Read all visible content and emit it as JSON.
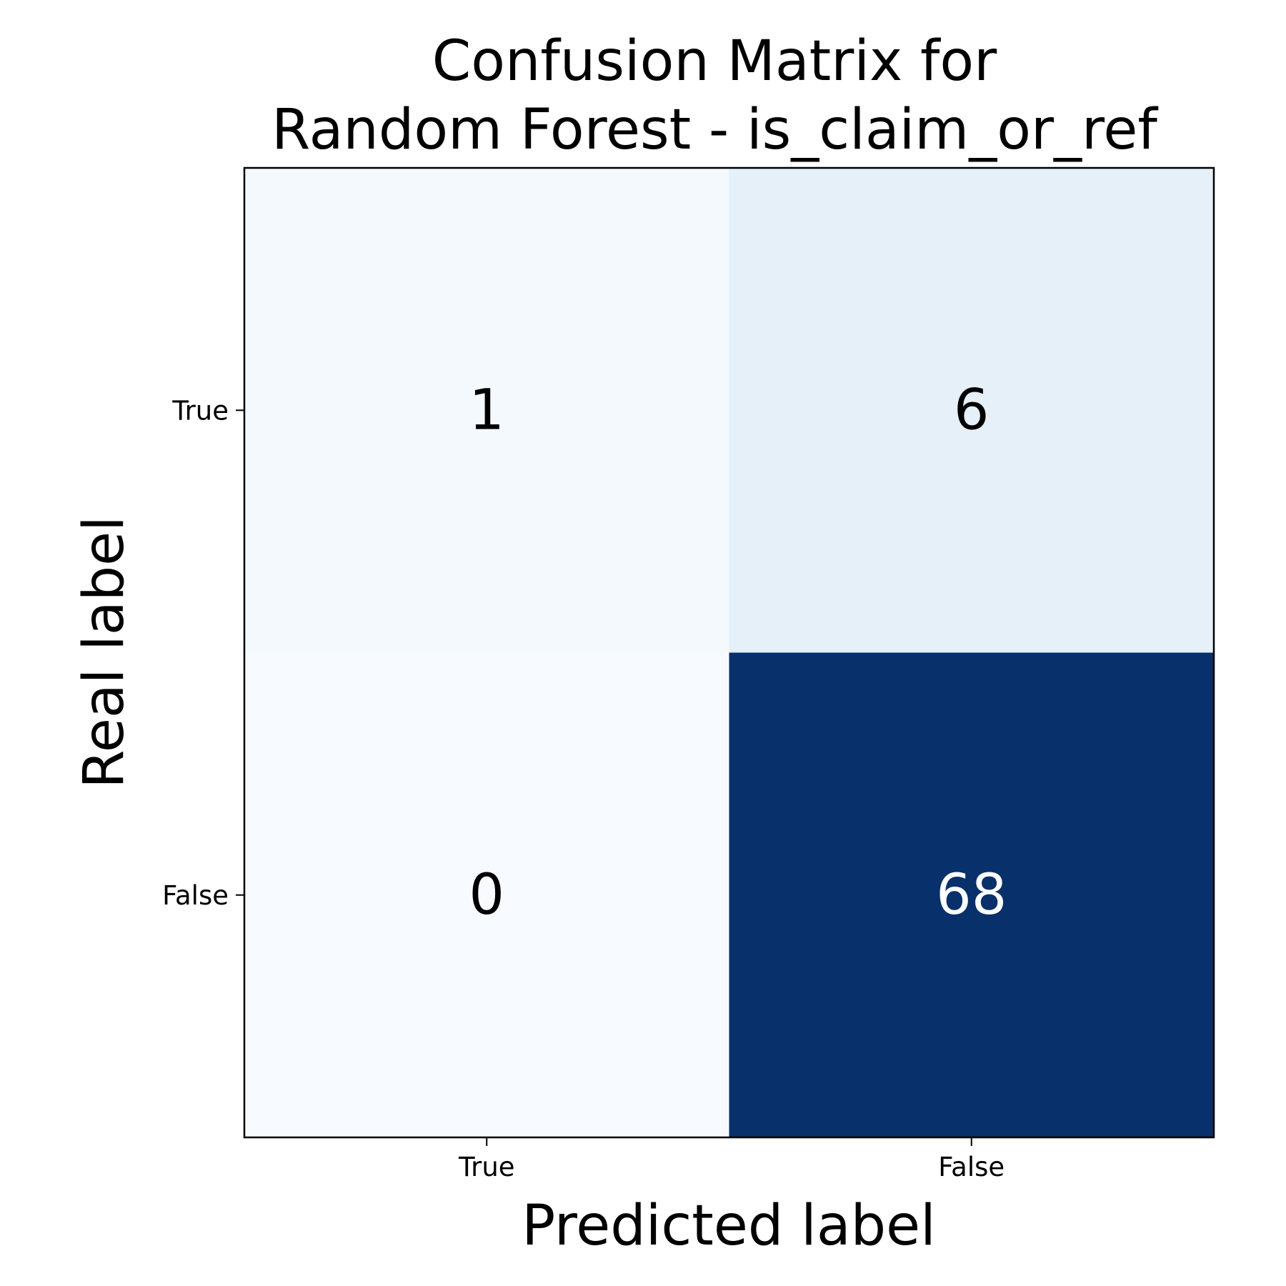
{
  "chart_data": {
    "type": "heatmap",
    "title_lines": [
      "Confusion Matrix for",
      "Random Forest - is_claim_or_ref"
    ],
    "xlabel": "Predicted label",
    "ylabel": "Real label",
    "x_categories": [
      "True",
      "False"
    ],
    "y_categories": [
      "True",
      "False"
    ],
    "values": [
      [
        1,
        6
      ],
      [
        0,
        68
      ]
    ],
    "colormap": "Blues",
    "color_range": [
      0,
      68
    ],
    "grid": false,
    "legend": "none"
  },
  "colors": {
    "low": "#f7fbff",
    "high": "#08306b",
    "text_dark": "#000000",
    "text_light": "#ffffff",
    "frame": "#000000"
  }
}
